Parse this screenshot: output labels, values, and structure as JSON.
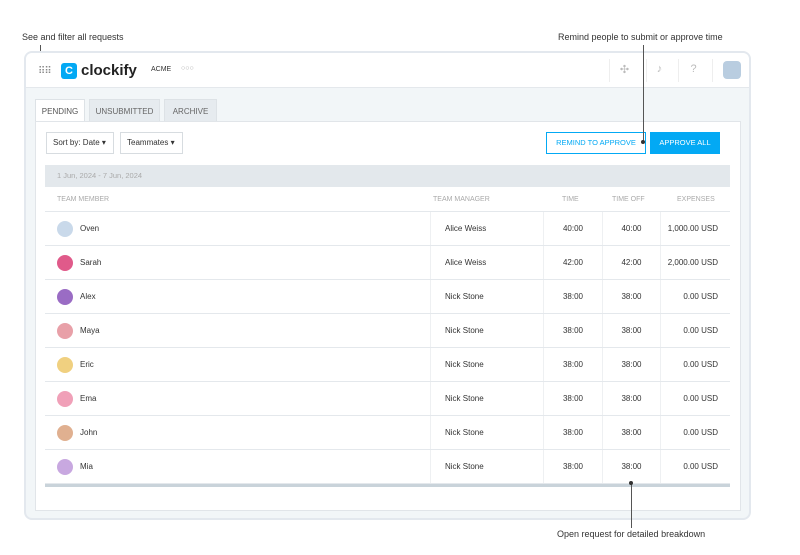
{
  "annotations": {
    "filter": "See and filter all requests",
    "remind": "Remind people to submit or approve time",
    "open": "Open request for detailed breakdown"
  },
  "header": {
    "logo": "clockify",
    "workspace": "ACME",
    "more": "○○○",
    "icons": [
      "apps-grid-icon",
      "puzzle-icon",
      "bell-icon",
      "help-icon",
      "user-avatar"
    ]
  },
  "tabs": [
    {
      "label": "PENDING",
      "active": true
    },
    {
      "label": "UNSUBMITTED"
    },
    {
      "label": "ARCHIVE"
    }
  ],
  "toolbar": {
    "sort": "Sort by: Date",
    "teammates": "Teammates",
    "remind": "REMIND TO APPROVE",
    "approve_all": "APPROVE ALL"
  },
  "accent": "#03a9f4",
  "table": {
    "date_range": "1 Jun, 2024 - 7 Jun, 2024",
    "columns": [
      "TEAM MEMBER",
      "TEAM MANAGER",
      "TIME",
      "TIME OFF",
      "EXPENSES"
    ],
    "rows": [
      {
        "member": "Oven",
        "manager": "Alice Weiss",
        "time": "40:00",
        "time_off": "40:00",
        "expenses": "1,000.00 USD",
        "color": "#c9d9ea"
      },
      {
        "member": "Sarah",
        "manager": "Alice Weiss",
        "time": "42:00",
        "time_off": "42:00",
        "expenses": "2,000.00 USD",
        "color": "#e05a8a"
      },
      {
        "member": "Alex",
        "manager": "Nick Stone",
        "time": "38:00",
        "time_off": "38:00",
        "expenses": "0.00 USD",
        "color": "#9a6cc4"
      },
      {
        "member": "Maya",
        "manager": "Nick Stone",
        "time": "38:00",
        "time_off": "38:00",
        "expenses": "0.00 USD",
        "color": "#e8a0a8"
      },
      {
        "member": "Eric",
        "manager": "Nick Stone",
        "time": "38:00",
        "time_off": "38:00",
        "expenses": "0.00 USD",
        "color": "#f0d080"
      },
      {
        "member": "Ema",
        "manager": "Nick Stone",
        "time": "38:00",
        "time_off": "38:00",
        "expenses": "0.00 USD",
        "color": "#f0a0b8"
      },
      {
        "member": "John",
        "manager": "Nick Stone",
        "time": "38:00",
        "time_off": "38:00",
        "expenses": "0.00 USD",
        "color": "#e0b090"
      },
      {
        "member": "Mia",
        "manager": "Nick Stone",
        "time": "38:00",
        "time_off": "38:00",
        "expenses": "0.00 USD",
        "color": "#c8a8e0"
      }
    ]
  }
}
